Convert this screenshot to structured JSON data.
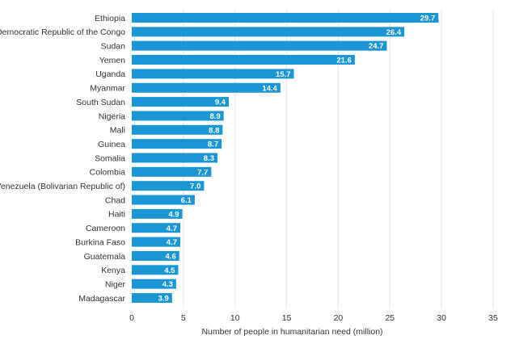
{
  "chart_data": {
    "type": "bar",
    "orientation": "horizontal",
    "categories": [
      "Ethiopia",
      "Democratic Republic of the Congo",
      "Sudan",
      "Yemen",
      "Uganda",
      "Myanmar",
      "South Sudan",
      "Nigeria",
      "Mali",
      "Guinea",
      "Somalia",
      "Colombia",
      "Venezuela (Bolivarian Republic of)",
      "Chad",
      "Haiti",
      "Cameroon",
      "Burkina Faso",
      "Guatemala",
      "Kenya",
      "Niger",
      "Madagascar"
    ],
    "values": [
      29.7,
      26.4,
      24.7,
      21.6,
      15.7,
      14.4,
      9.4,
      8.9,
      8.8,
      8.7,
      8.3,
      7.7,
      7.0,
      6.1,
      4.9,
      4.7,
      4.7,
      4.6,
      4.5,
      4.3,
      3.9
    ],
    "value_labels": [
      "29.7",
      "26.4",
      "24.7",
      "21.6",
      "15.7",
      "14.4",
      "9.4",
      "8.9",
      "8.8",
      "8.7",
      "8.3",
      "7.7",
      "7.0",
      "6.1",
      "4.9",
      "4.7",
      "4.7",
      "4.6",
      "4.5",
      "4.3",
      "3.9"
    ],
    "xlabel": "Number of people in humanitarian need (million)",
    "ylabel": "",
    "xlim": [
      0,
      35
    ],
    "xticks": [
      "0",
      "5",
      "10",
      "15",
      "20",
      "25",
      "30",
      "35"
    ],
    "grid": true,
    "bar_color": "#1a96d4",
    "grid_color": "#e6e6e6",
    "text_color": "#333333"
  }
}
